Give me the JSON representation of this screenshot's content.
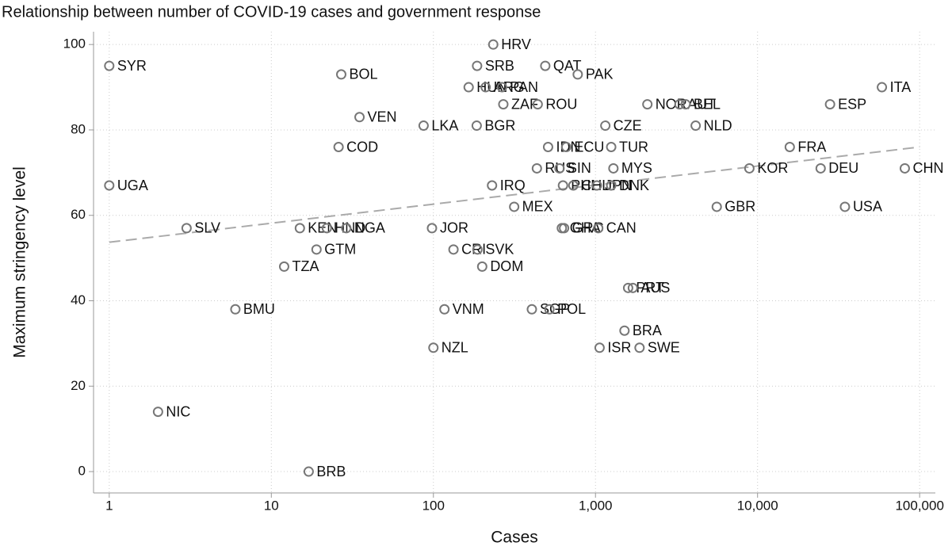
{
  "chart_data": {
    "type": "scatter",
    "title": "Relationship between number of COVID-19 cases and government response",
    "x_label": "Cases",
    "y_label": "Maximum stringency level",
    "x_scale": "log",
    "grid": true,
    "marker_color": "#777777",
    "labels": [
      "SYR",
      "BOL",
      "HRV",
      "SRB",
      "QAT",
      "PAK",
      "HUN",
      "ARG",
      "PAN",
      "ZAF",
      "ROU",
      "ITA",
      "ESP",
      "NOR",
      "AUT",
      "BEL",
      "VEN",
      "LKA",
      "BGR",
      "CZE",
      "NLD",
      "COD",
      "IDN",
      "ECU",
      "TUR",
      "FRA",
      "RUS",
      "SIN",
      "MYS",
      "KOR",
      "DEU",
      "CHN",
      "UGA",
      "IRQ",
      "PHL",
      "CHL",
      "JPN",
      "DNK",
      "MEX",
      "GBR",
      "USA",
      "SLV",
      "KEN",
      "HND",
      "NGA",
      "JOR",
      "GHA",
      "GRC",
      "CAN",
      "GTM",
      "CRI",
      "SVK",
      "TZA",
      "DOM",
      "PRT",
      "AUS",
      "BMU",
      "VNM",
      "SGP",
      "POL",
      "BRA",
      "NZL",
      "ISR",
      "SWE",
      "NIC",
      "BRB"
    ],
    "x": [
      1,
      27,
      234,
      186,
      490,
      777,
      165,
      210,
      265,
      270,
      440,
      58500,
      28000,
      2090,
      3300,
      3600,
      35,
      87,
      185,
      1150,
      4150,
      26,
      510,
      660,
      1250,
      15800,
      435,
      600,
      1290,
      8900,
      24500,
      81000,
      1,
      230,
      630,
      730,
      1020,
      1250,
      315,
      5600,
      34600,
      3,
      15,
      22,
      29,
      98,
      620,
      640,
      1040,
      19,
      133,
      187,
      12,
      200,
      1590,
      1700,
      6,
      117,
      405,
      520,
      1510,
      100,
      1060,
      1870,
      2,
      17
    ],
    "values": [
      95,
      93,
      100,
      95,
      95,
      93,
      90,
      90,
      90,
      86,
      86,
      90,
      86,
      86,
      86,
      86,
      83,
      81,
      81,
      81,
      81,
      76,
      76,
      76,
      76,
      76,
      71,
      71,
      71,
      71,
      71,
      71,
      67,
      67,
      67,
      67,
      67,
      67,
      62,
      62,
      62,
      57,
      57,
      57,
      57,
      57,
      57,
      57,
      57,
      52,
      52,
      52,
      48,
      48,
      43,
      43,
      38,
      38,
      38,
      38,
      33,
      29,
      29,
      29,
      14,
      0
    ],
    "trendline": {
      "x": [
        1,
        100000
      ],
      "values": [
        53.7,
        76
      ],
      "color": "#aaaaaa"
    },
    "xlim": [
      0.8,
      125000
    ],
    "ylim": [
      -5,
      103
    ],
    "xticks": [
      1,
      10,
      100,
      {
        "value": 1000,
        "label": "1,000"
      },
      {
        "value": 10000,
        "label": "10,000"
      },
      {
        "value": 100000,
        "label": "100,000"
      }
    ],
    "yticks": [
      0,
      20,
      40,
      60,
      80,
      100
    ]
  }
}
